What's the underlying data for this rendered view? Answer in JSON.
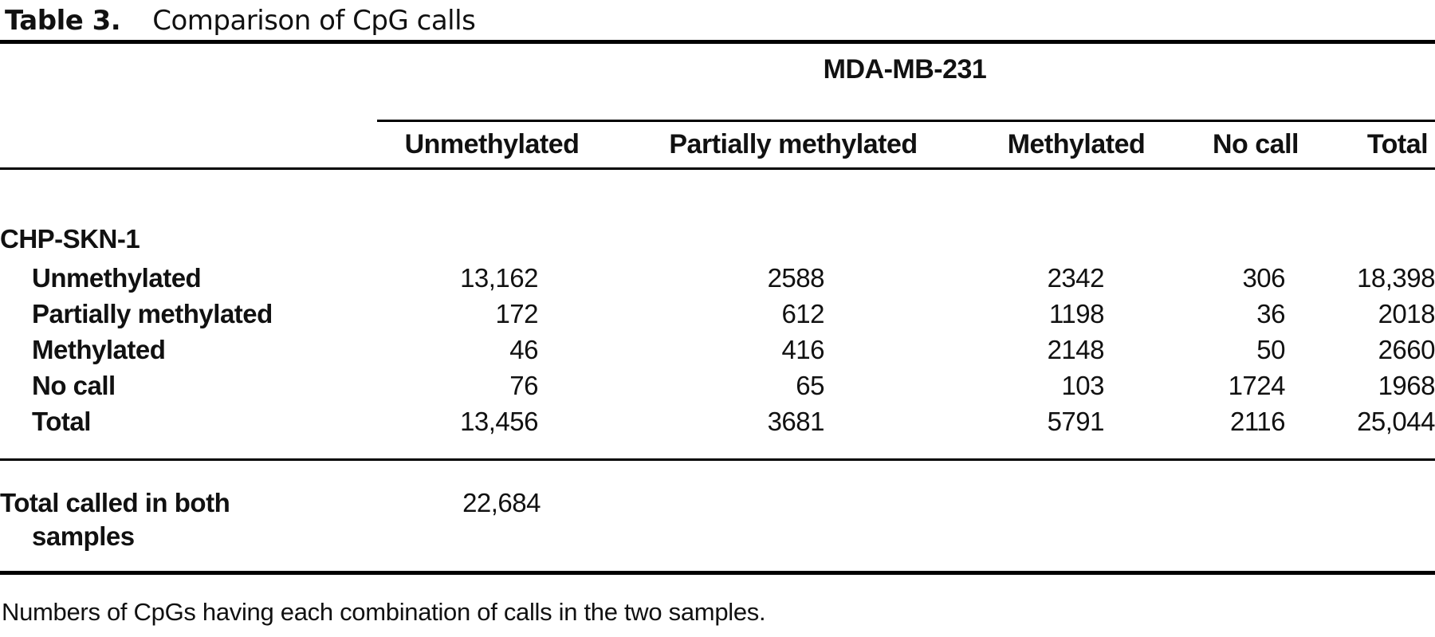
{
  "title": {
    "label": "Table 3.",
    "text": "Comparison of CpG calls"
  },
  "table": {
    "spanner": "MDA-MB-231",
    "column_headers": [
      "Unmethylated",
      "Partially methylated",
      "Methylated",
      "No call",
      "Total"
    ],
    "row_group": "CHP-SKN-1",
    "rows": [
      {
        "label": "Unmethylated",
        "values": [
          "13,162",
          "2588",
          "2342",
          "306",
          "18,398"
        ]
      },
      {
        "label": "Partially methylated",
        "values": [
          "172",
          "612",
          "1198",
          "36",
          "2018"
        ]
      },
      {
        "label": "Methylated",
        "values": [
          "46",
          "416",
          "2148",
          "50",
          "2660"
        ]
      },
      {
        "label": "No call",
        "values": [
          "76",
          "65",
          "103",
          "1724",
          "1968"
        ]
      },
      {
        "label": "Total",
        "values": [
          "13,456",
          "3681",
          "5791",
          "2116",
          "25,044"
        ]
      }
    ],
    "summary": {
      "label_lines": [
        "Total called in both",
        "samples"
      ],
      "value": "22,684"
    }
  },
  "footnote": "Numbers of CpGs having each combination of calls in the two samples.",
  "colors": {
    "text": "#111111",
    "rule": "#000000",
    "background": "#ffffff"
  }
}
